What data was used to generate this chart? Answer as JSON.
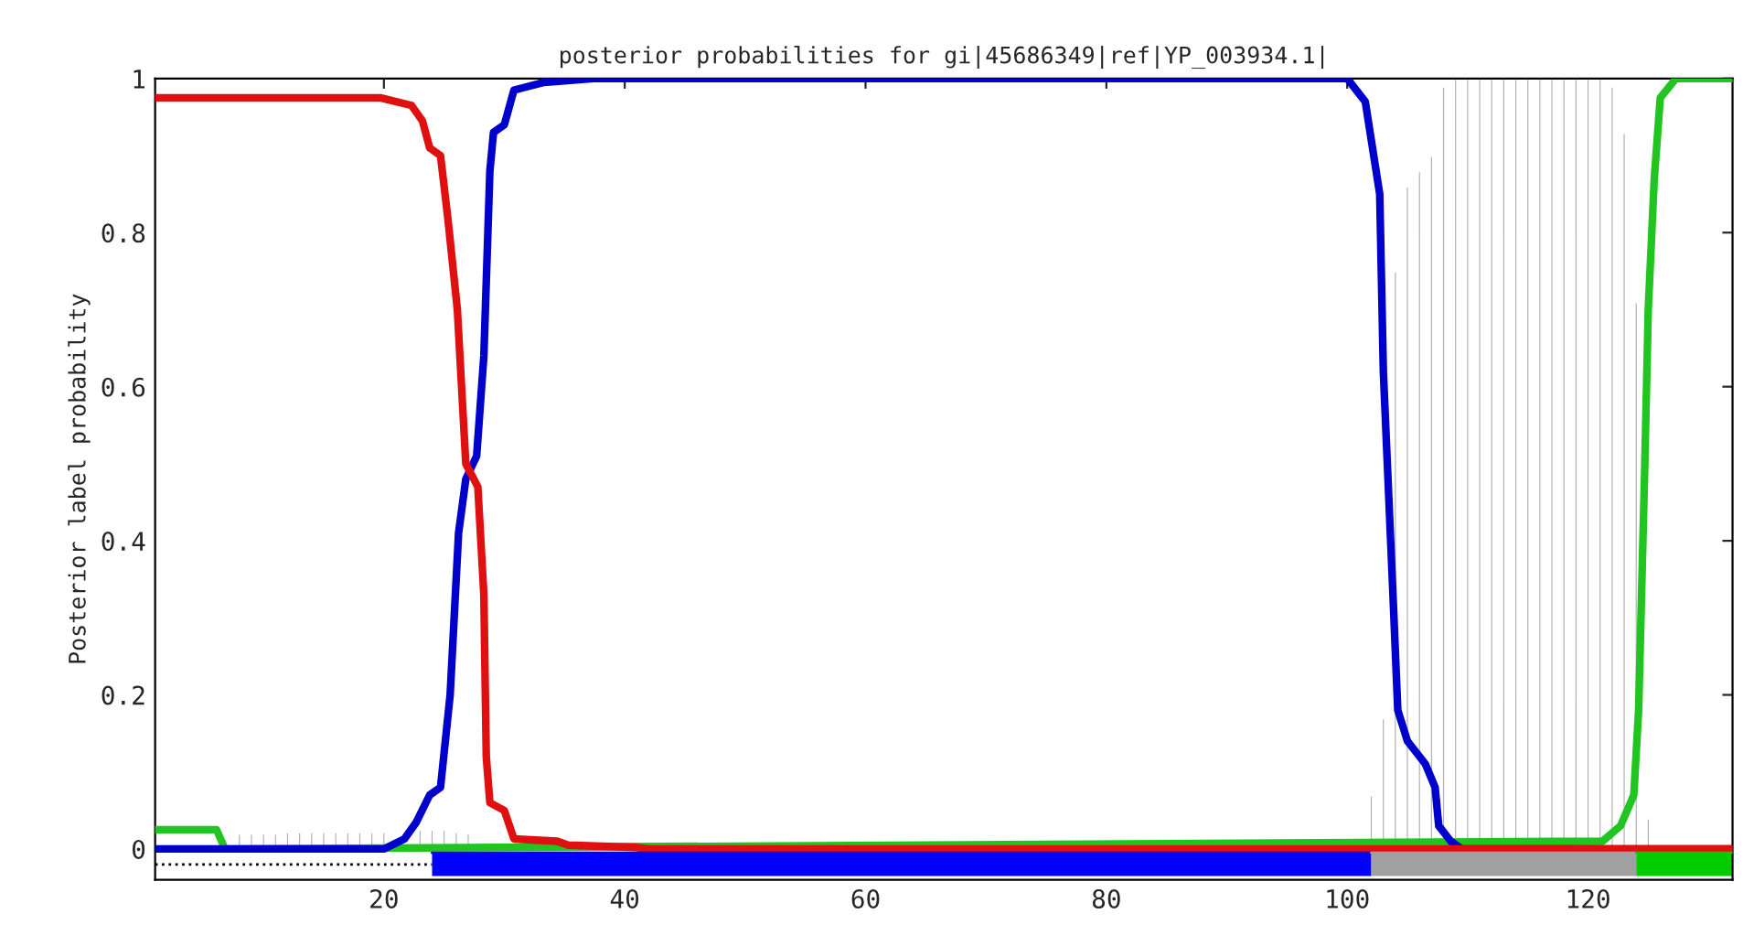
{
  "chart_data": {
    "type": "line",
    "title": "posterior probabilities for gi|45686349|ref|YP_003934.1|",
    "ylabel": "Posterior label probability",
    "xlim": [
      1,
      132
    ],
    "ylim": [
      -0.04,
      1
    ],
    "xticks": [
      20,
      40,
      60,
      80,
      100,
      120
    ],
    "yticks": [
      0,
      0.2,
      0.4,
      0.6,
      0.8,
      1
    ],
    "grid": false,
    "marker": "none",
    "line_style": "solid",
    "series": [
      {
        "type": "bar",
        "color": "#b0b0b0",
        "x": [
          8,
          9,
          10,
          11,
          12,
          13,
          14,
          15,
          16,
          17,
          18,
          19,
          20,
          21,
          22,
          23,
          24,
          25,
          26,
          27,
          28,
          29,
          100,
          101,
          102,
          103,
          104,
          105,
          106,
          107,
          108,
          109,
          110,
          111,
          112,
          113,
          114,
          115,
          116,
          117,
          118,
          119,
          120,
          121,
          122,
          123,
          124,
          125
        ],
        "values": [
          0.02,
          0.02,
          0.02,
          0.02,
          0.022,
          0.022,
          0.022,
          0.022,
          0.022,
          0.022,
          0.022,
          0.022,
          0.022,
          null,
          null,
          0.025,
          0.025,
          0.025,
          0.022,
          0.02,
          null,
          null,
          null,
          null,
          0.07,
          0.17,
          0.75,
          0.86,
          0.88,
          0.9,
          0.99,
          1,
          1,
          1,
          1,
          1,
          1,
          1,
          1,
          1,
          1,
          1,
          1,
          1,
          0.99,
          0.93,
          0.71,
          0.04
        ]
      },
      {
        "color": "#22c422",
        "x": [
          1,
          6.1,
          6.8,
          121.2,
          122.7,
          123.8,
          124.2,
          124.7,
          125,
          125.5,
          126,
          127.3,
          132
        ],
        "values": [
          0.025,
          0.025,
          0,
          0.01,
          0.03,
          0.07,
          0.18,
          0.49,
          0.7,
          0.87,
          0.975,
          1,
          1
        ]
      },
      {
        "color": "#0000cc",
        "x": [
          1,
          20,
          21.7,
          22.7,
          23.8,
          24.7,
          25.5,
          26.2,
          26.8,
          27.7,
          28.3,
          28.8,
          29.1,
          30,
          30.8,
          33.3,
          37.4,
          100,
          101.5,
          102.7,
          103,
          103.8,
          104.2,
          105,
          106.5,
          107.3,
          107.6,
          108.6,
          109.5,
          132
        ],
        "values": [
          0,
          0,
          0.013,
          0.035,
          0.07,
          0.08,
          0.2,
          0.41,
          0.48,
          0.51,
          0.64,
          0.88,
          0.93,
          0.94,
          0.985,
          0.995,
          1,
          1,
          0.97,
          0.85,
          0.62,
          0.33,
          0.18,
          0.14,
          0.11,
          0.08,
          0.03,
          0.01,
          0,
          0
        ]
      },
      {
        "color": "#e01010",
        "x": [
          1,
          19.7,
          22.3,
          23.2,
          23.8,
          24.7,
          25.3,
          26.1,
          26.8,
          27.8,
          28.3,
          28.5,
          28.8,
          30,
          30.8,
          34.4,
          35.3,
          40.9,
          42,
          132
        ],
        "values": [
          0.975,
          0.975,
          0.965,
          0.945,
          0.91,
          0.9,
          0.82,
          0.7,
          0.5,
          0.47,
          0.33,
          0.12,
          0.06,
          0.05,
          0.013,
          0.01,
          0.005,
          0.002,
          0,
          0
        ]
      },
      {
        "color": "#000000",
        "line_style": "dotted",
        "x": [
          1,
          24
        ],
        "values": [
          -0.02,
          -0.02
        ]
      },
      {
        "color": "#0000ff",
        "x": [
          24,
          102
        ],
        "values": [
          -0.005,
          -0.005
        ],
        "lower": [
          -0.035,
          -0.035
        ],
        "upper": [
          -0.005,
          -0.005
        ]
      },
      {
        "color": "#a0a0a0",
        "x": [
          102,
          124
        ],
        "values": [
          -0.005,
          -0.005
        ],
        "lower": [
          -0.035,
          -0.035
        ],
        "upper": [
          -0.005,
          -0.005
        ]
      },
      {
        "color": "#00cc00",
        "x": [
          124,
          132
        ],
        "values": [
          -0.005,
          -0.005
        ],
        "lower": [
          -0.035,
          -0.035
        ],
        "upper": [
          -0.005,
          -0.005
        ]
      }
    ]
  }
}
